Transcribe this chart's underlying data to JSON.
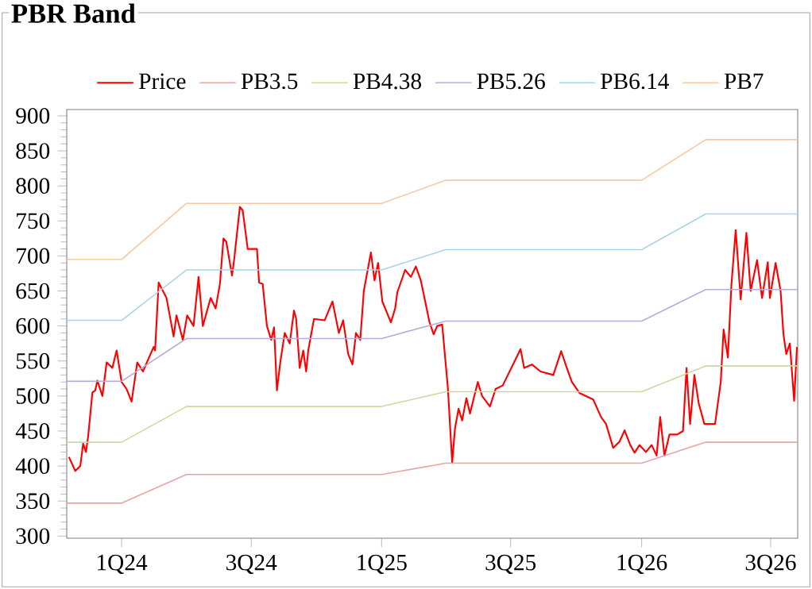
{
  "chart_data": {
    "type": "line",
    "title": "PBR Band",
    "xlim": [
      "2023-10-16",
      "2026-08-08"
    ],
    "xticks": [
      {
        "value": "2024-01-01",
        "label": "1Q24"
      },
      {
        "value": "2024-07-01",
        "label": "3Q24"
      },
      {
        "value": "2025-01-01",
        "label": "1Q25"
      },
      {
        "value": "2025-07-01",
        "label": "3Q25"
      },
      {
        "value": "2026-01-01",
        "label": "1Q26"
      },
      {
        "value": "2026-07-01",
        "label": "3Q26"
      }
    ],
    "ylim": [
      297,
      909
    ],
    "yticks": [
      300,
      350,
      400,
      450,
      500,
      550,
      600,
      650,
      700,
      750,
      800,
      850,
      900
    ],
    "grid": false,
    "legend": "top",
    "marker": "none",
    "line_style": "solid",
    "series": [
      {
        "name": "Price",
        "color": "#ff0000",
        "x": [
          "2023-10-19",
          "2023-10-28",
          "2023-11-04",
          "2023-11-08",
          "2023-11-12",
          "2023-11-15",
          "2023-11-21",
          "2023-11-25",
          "2023-11-28",
          "2023-12-05",
          "2023-12-11",
          "2023-12-19",
          "2023-12-25",
          "2024-01-01",
          "2024-01-08",
          "2024-01-15",
          "2024-01-23",
          "2024-01-31",
          "2024-02-09",
          "2024-02-15",
          "2024-02-17",
          "2024-02-22",
          "2024-03-04",
          "2024-03-14",
          "2024-03-18",
          "2024-03-27",
          "2024-04-02",
          "2024-04-11",
          "2024-04-18",
          "2024-04-24",
          "2024-05-05",
          "2024-05-12",
          "2024-05-18",
          "2024-05-23",
          "2024-05-27",
          "2024-06-04",
          "2024-06-07",
          "2024-06-15",
          "2024-06-19",
          "2024-06-26",
          "2024-07-09",
          "2024-07-12",
          "2024-07-17",
          "2024-07-23",
          "2024-07-29",
          "2024-08-02",
          "2024-08-06",
          "2024-08-11",
          "2024-08-17",
          "2024-08-24",
          "2024-08-30",
          "2024-09-02",
          "2024-09-07",
          "2024-09-12",
          "2024-09-16",
          "2024-09-19",
          "2024-09-27",
          "2024-10-12",
          "2024-10-23",
          "2024-11-01",
          "2024-11-07",
          "2024-11-14",
          "2024-11-20",
          "2024-11-25",
          "2024-12-01",
          "2024-12-06",
          "2024-12-16",
          "2024-12-21",
          "2024-12-26",
          "2025-01-02",
          "2025-01-14",
          "2025-01-20",
          "2025-01-23",
          "2025-02-03",
          "2025-02-11",
          "2025-02-18",
          "2025-02-25",
          "2025-03-05",
          "2025-03-09",
          "2025-03-15",
          "2025-03-20",
          "2025-03-27",
          "2025-04-04",
          "2025-04-10",
          "2025-04-14",
          "2025-04-19",
          "2025-04-24",
          "2025-04-30",
          "2025-05-05",
          "2025-05-16",
          "2025-05-22",
          "2025-06-02",
          "2025-06-10",
          "2025-06-20",
          "2025-07-15",
          "2025-07-20",
          "2025-07-31",
          "2025-08-12",
          "2025-08-30",
          "2025-09-10",
          "2025-09-18",
          "2025-09-25",
          "2025-10-06",
          "2025-10-25",
          "2025-11-05",
          "2025-11-12",
          "2025-11-22",
          "2025-12-01",
          "2025-12-08",
          "2025-12-16",
          "2025-12-22",
          "2025-12-29",
          "2026-01-07",
          "2026-01-15",
          "2026-01-22",
          "2026-01-27",
          "2026-02-02",
          "2026-02-09",
          "2026-02-20",
          "2026-02-28",
          "2026-03-05",
          "2026-03-10",
          "2026-03-16",
          "2026-03-22",
          "2026-03-30",
          "2026-04-14",
          "2026-04-22",
          "2026-04-26",
          "2026-05-02",
          "2026-05-07",
          "2026-05-13",
          "2026-05-20",
          "2026-05-28",
          "2026-06-03",
          "2026-06-12",
          "2026-06-19",
          "2026-06-27",
          "2026-06-30",
          "2026-07-08",
          "2026-07-15",
          "2026-07-19",
          "2026-07-23",
          "2026-07-28",
          "2026-08-03",
          "2026-08-07"
        ],
        "values": [
          413,
          393,
          400,
          432,
          420,
          442,
          505,
          508,
          522,
          500,
          548,
          540,
          565,
          520,
          510,
          492,
          548,
          535,
          556,
          570,
          565,
          662,
          640,
          585,
          615,
          580,
          615,
          600,
          670,
          600,
          640,
          625,
          660,
          725,
          720,
          672,
          695,
          770,
          765,
          710,
          710,
          662,
          660,
          600,
          580,
          598,
          508,
          550,
          590,
          575,
          622,
          610,
          540,
          565,
          535,
          565,
          610,
          608,
          635,
          590,
          608,
          560,
          545,
          590,
          580,
          650,
          705,
          665,
          690,
          635,
          605,
          625,
          648,
          680,
          670,
          685,
          665,
          626,
          606,
          588,
          600,
          602,
          511,
          405,
          454,
          482,
          465,
          497,
          475,
          520,
          500,
          485,
          510,
          515,
          567,
          540,
          545,
          535,
          530,
          564,
          540,
          520,
          504,
          495,
          470,
          460,
          426,
          435,
          451,
          430,
          419,
          430,
          420,
          430,
          415,
          470,
          415,
          445,
          445,
          450,
          540,
          460,
          530,
          490,
          460,
          460,
          520,
          595,
          555,
          659,
          737,
          638,
          733,
          650,
          694,
          640,
          691,
          640,
          690,
          650,
          588,
          560,
          575,
          493,
          570
        ]
      },
      {
        "name": "PB3.5",
        "color": "#e8a4a4",
        "x": [
          "2023-10-16",
          "2024-01-01",
          "2024-04-01",
          "2025-01-01",
          "2025-04-01",
          "2026-01-01",
          "2026-04-01",
          "2026-08-08"
        ],
        "values": [
          347,
          347,
          388,
          388,
          404,
          404,
          434,
          434
        ]
      },
      {
        "name": "PB4.38",
        "color": "#c8dca0",
        "x": [
          "2023-10-16",
          "2024-01-01",
          "2024-04-01",
          "2025-01-01",
          "2025-04-01",
          "2026-01-01",
          "2026-04-01",
          "2026-08-08"
        ],
        "values": [
          434,
          434,
          485,
          485,
          506,
          506,
          543,
          543
        ]
      },
      {
        "name": "PB5.26",
        "color": "#b8acd8",
        "x": [
          "2023-10-16",
          "2024-01-01",
          "2024-04-01",
          "2025-01-01",
          "2025-04-01",
          "2026-01-01",
          "2026-04-01",
          "2026-08-08"
        ],
        "values": [
          521,
          521,
          582,
          582,
          607,
          607,
          652,
          652
        ]
      },
      {
        "name": "PB6.14",
        "color": "#a8d4e8",
        "x": [
          "2023-10-16",
          "2024-01-01",
          "2024-04-01",
          "2025-01-01",
          "2025-04-01",
          "2026-01-01",
          "2026-04-01",
          "2026-08-08"
        ],
        "values": [
          608,
          608,
          680,
          680,
          709,
          709,
          760,
          760
        ]
      },
      {
        "name": "PB7",
        "color": "#f8c8a0",
        "x": [
          "2023-10-16",
          "2024-01-01",
          "2024-04-01",
          "2025-01-01",
          "2025-04-01",
          "2026-01-01",
          "2026-04-01",
          "2026-08-08"
        ],
        "values": [
          695,
          695,
          775,
          775,
          808,
          808,
          866,
          866
        ]
      }
    ]
  }
}
